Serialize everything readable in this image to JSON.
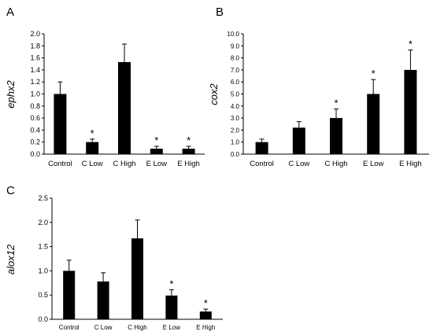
{
  "chart_data": [
    {
      "panel_letter": "A",
      "type": "bar",
      "ylabel": "ephx2",
      "xlabel": "",
      "categories": [
        "Control",
        "C Low",
        "C High",
        "E Low",
        "E High"
      ],
      "values": [
        1.0,
        0.2,
        1.53,
        0.09,
        0.09
      ],
      "errors": [
        0.2,
        0.05,
        0.3,
        0.04,
        0.04
      ],
      "significance": [
        "",
        "*",
        "",
        "*",
        "*"
      ],
      "ylim": [
        0,
        2.0
      ],
      "yticks": [
        "0.0",
        "0.2",
        "0.4",
        "0.6",
        "0.8",
        "1.0",
        "1.2",
        "1.4",
        "1.6",
        "1.8",
        "2.0"
      ],
      "grid": false,
      "bar_color": "#000000"
    },
    {
      "panel_letter": "B",
      "type": "bar",
      "ylabel": "cox2",
      "xlabel": "",
      "categories": [
        "Control",
        "C Low",
        "C High",
        "E Low",
        "E High"
      ],
      "values": [
        1.0,
        2.2,
        3.0,
        5.0,
        7.0
      ],
      "errors": [
        0.25,
        0.5,
        0.75,
        1.2,
        1.65
      ],
      "significance": [
        "",
        "",
        "*",
        "*",
        "*"
      ],
      "ylim": [
        0,
        10.0
      ],
      "yticks": [
        "0.0",
        "1.0",
        "2.0",
        "3.0",
        "4.0",
        "5.0",
        "6.0",
        "7.0",
        "8.0",
        "9.0",
        "10.0"
      ],
      "grid": false,
      "bar_color": "#000000"
    },
    {
      "panel_letter": "C",
      "type": "bar",
      "ylabel": "alox12",
      "xlabel": "",
      "categories": [
        "Control",
        "C Low",
        "C High",
        "E Low",
        "E High"
      ],
      "values": [
        1.0,
        0.78,
        1.67,
        0.49,
        0.16
      ],
      "errors": [
        0.22,
        0.18,
        0.38,
        0.12,
        0.05
      ],
      "significance": [
        "",
        "",
        "",
        "*",
        "*"
      ],
      "ylim": [
        0,
        2.5
      ],
      "yticks": [
        "0.0",
        "0.5",
        "1.0",
        "1.5",
        "2.0",
        "2.5"
      ],
      "grid": false,
      "bar_color": "#000000"
    }
  ]
}
